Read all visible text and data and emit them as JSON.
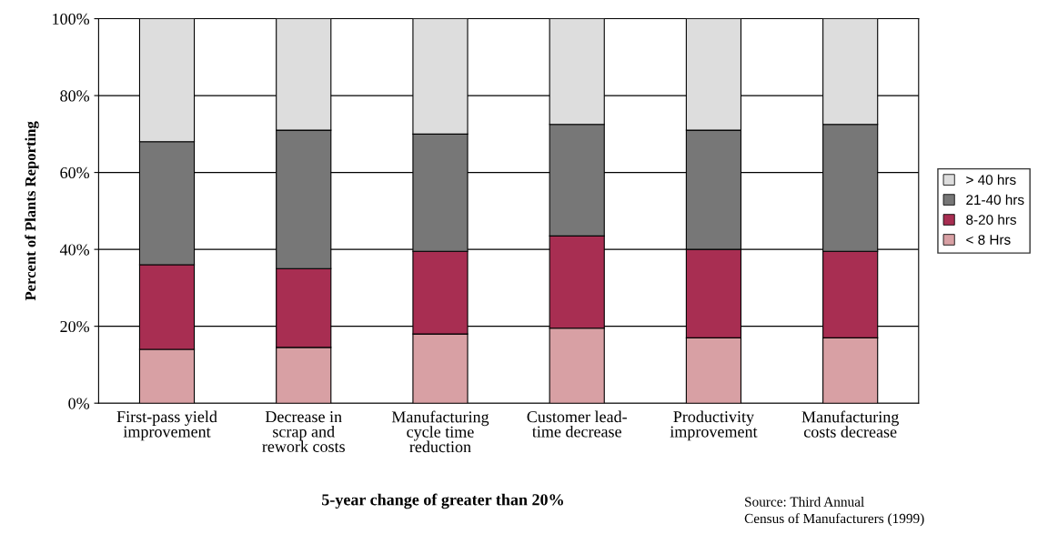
{
  "chart_data": {
    "type": "bar",
    "stacked": true,
    "xlabel": "5-year change of greater than 20%",
    "ylabel": "Percent of Plants Reporting",
    "categories": [
      "First-pass yield\nimprovement",
      "Decrease in\nscrap and\nrework costs",
      "Manufacturing\ncycle time\nreduction",
      "Customer lead-\ntime decrease",
      "Productivity\nimprovement",
      "Manufacturing\ncosts decrease"
    ],
    "series": [
      {
        "name": "< 8 Hrs",
        "color": "#d8a0a4",
        "values": [
          14,
          14.5,
          18,
          19.5,
          17,
          17
        ]
      },
      {
        "name": "8-20 hrs",
        "color": "#a82e52",
        "values": [
          22,
          20.5,
          21.5,
          24,
          23,
          22.5
        ]
      },
      {
        "name": "21-40 hrs",
        "color": "#777777",
        "values": [
          32,
          36,
          30.5,
          29,
          31,
          33
        ]
      },
      {
        "name": "> 40 hrs",
        "color": "#dddddd",
        "values": [
          32,
          29,
          30,
          27.5,
          29,
          27.5
        ]
      }
    ],
    "ylim": [
      0,
      100
    ],
    "yticks": [
      {
        "value": 0,
        "label": "0%"
      },
      {
        "value": 20,
        "label": "20%"
      },
      {
        "value": 40,
        "label": "40%"
      },
      {
        "value": 60,
        "label": "60%"
      },
      {
        "value": 80,
        "label": "80%"
      },
      {
        "value": 100,
        "label": "100%"
      }
    ],
    "grid": "y",
    "legend": "right",
    "annotations": [
      "Source: Third Annual\nCensus of Manufacturers (1999)"
    ]
  }
}
